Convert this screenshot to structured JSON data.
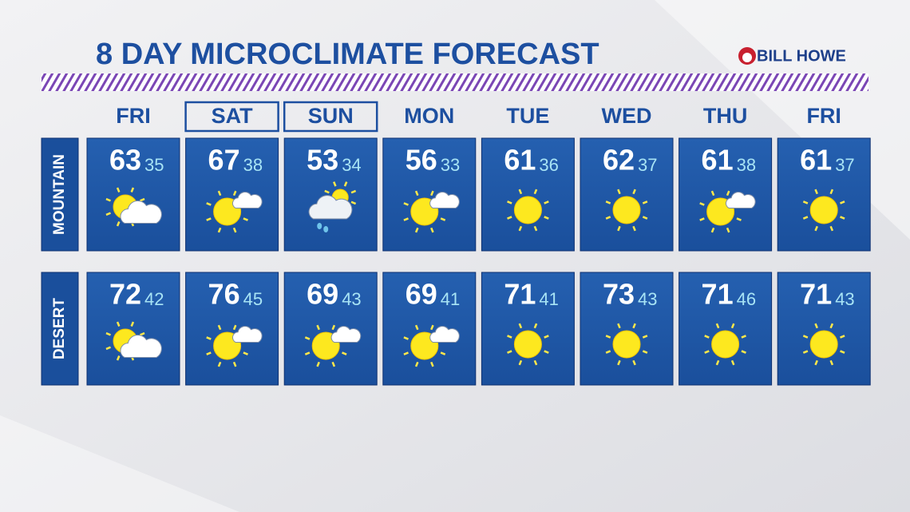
{
  "header": {
    "title": "8 DAY MICROCLIMATE FORECAST",
    "sponsor": "BILL HOWE"
  },
  "days": [
    "FRI",
    "SAT",
    "SUN",
    "MON",
    "TUE",
    "WED",
    "THU",
    "FRI"
  ],
  "regions": [
    {
      "label": "MOUNTAIN",
      "highs": [
        63,
        67,
        53,
        56,
        61,
        62,
        61,
        61
      ],
      "lows": [
        35,
        38,
        34,
        33,
        36,
        37,
        38,
        37
      ]
    },
    {
      "label": "DESERT",
      "highs": [
        72,
        76,
        69,
        69,
        71,
        73,
        71,
        71
      ],
      "lows": [
        42,
        45,
        43,
        41,
        41,
        43,
        46,
        43
      ]
    }
  ]
}
